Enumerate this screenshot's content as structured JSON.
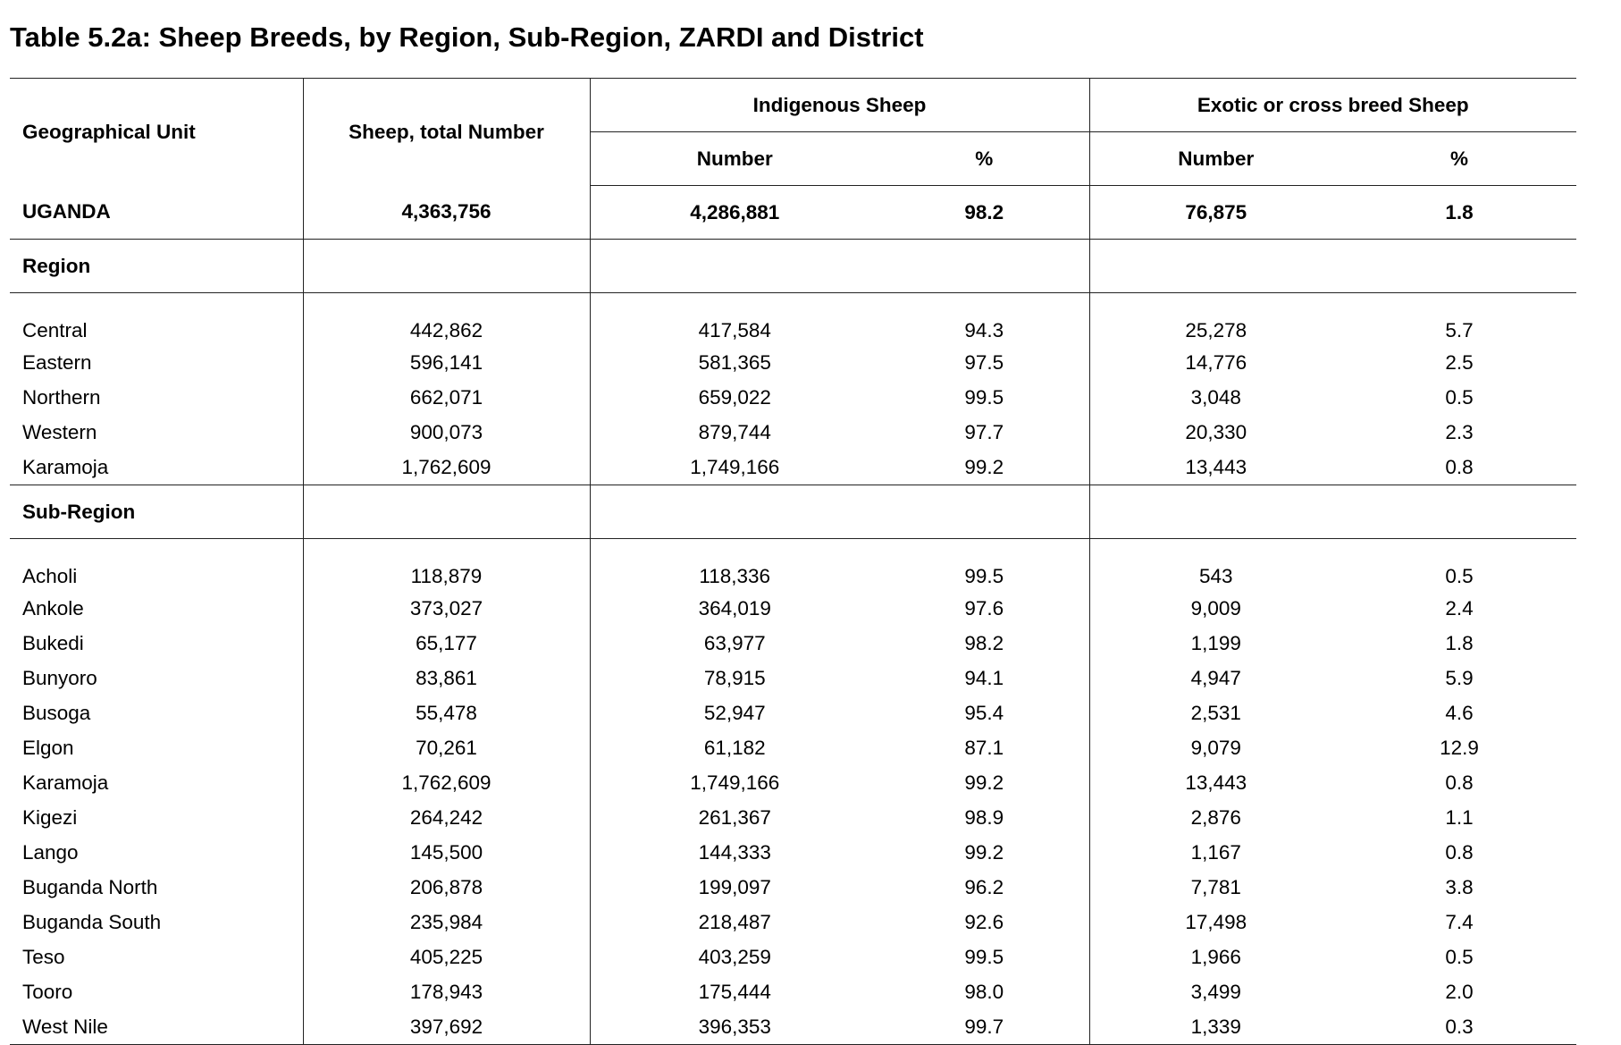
{
  "title": "Table 5.2a: Sheep Breeds, by Region, Sub-Region, ZARDI and District",
  "headers": {
    "geo": "Geographical Unit",
    "total": "Sheep, total Number",
    "indigenous_group": "Indigenous Sheep",
    "exotic_group": "Exotic or cross breed Sheep",
    "number": "Number",
    "percent": "%"
  },
  "total_row": {
    "label": "UGANDA",
    "total": "4,363,756",
    "ind_num": "4,286,881",
    "ind_pct": "98.2",
    "exo_num": "76,875",
    "exo_pct": "1.8"
  },
  "sections": [
    {
      "heading": "Region",
      "rows": [
        [
          "Central",
          "442,862",
          "417,584",
          "94.3",
          "25,278",
          "5.7"
        ],
        [
          "Eastern",
          "596,141",
          "581,365",
          "97.5",
          "14,776",
          "2.5"
        ],
        [
          "Northern",
          "662,071",
          "659,022",
          "99.5",
          "3,048",
          "0.5"
        ],
        [
          "Western",
          "900,073",
          "879,744",
          "97.7",
          "20,330",
          "2.3"
        ],
        [
          "Karamoja",
          "1,762,609",
          "1,749,166",
          "99.2",
          "13,443",
          "0.8"
        ]
      ]
    },
    {
      "heading": "Sub-Region",
      "rows": [
        [
          "Acholi",
          "118,879",
          "118,336",
          "99.5",
          "543",
          "0.5"
        ],
        [
          "Ankole",
          "373,027",
          "364,019",
          "97.6",
          "9,009",
          "2.4"
        ],
        [
          "Bukedi",
          "65,177",
          "63,977",
          "98.2",
          "1,199",
          "1.8"
        ],
        [
          "Bunyoro",
          "83,861",
          "78,915",
          "94.1",
          "4,947",
          "5.9"
        ],
        [
          "Busoga",
          "55,478",
          "52,947",
          "95.4",
          "2,531",
          "4.6"
        ],
        [
          "Elgon",
          "70,261",
          "61,182",
          "87.1",
          "9,079",
          "12.9"
        ],
        [
          "Karamoja",
          "1,762,609",
          "1,749,166",
          "99.2",
          "13,443",
          "0.8"
        ],
        [
          "Kigezi",
          "264,242",
          "261,367",
          "98.9",
          "2,876",
          "1.1"
        ],
        [
          "Lango",
          "145,500",
          "144,333",
          "99.2",
          "1,167",
          "0.8"
        ],
        [
          "Buganda North",
          "206,878",
          "199,097",
          "96.2",
          "7,781",
          "3.8"
        ],
        [
          "Buganda South",
          "235,984",
          "218,487",
          "92.6",
          "17,498",
          "7.4"
        ],
        [
          "Teso",
          "405,225",
          "403,259",
          "99.5",
          "1,966",
          "0.5"
        ],
        [
          "Tooro",
          "178,943",
          "175,444",
          "98.0",
          "3,499",
          "2.0"
        ],
        [
          "West Nile",
          "397,692",
          "396,353",
          "99.7",
          "1,339",
          "0.3"
        ]
      ]
    }
  ]
}
